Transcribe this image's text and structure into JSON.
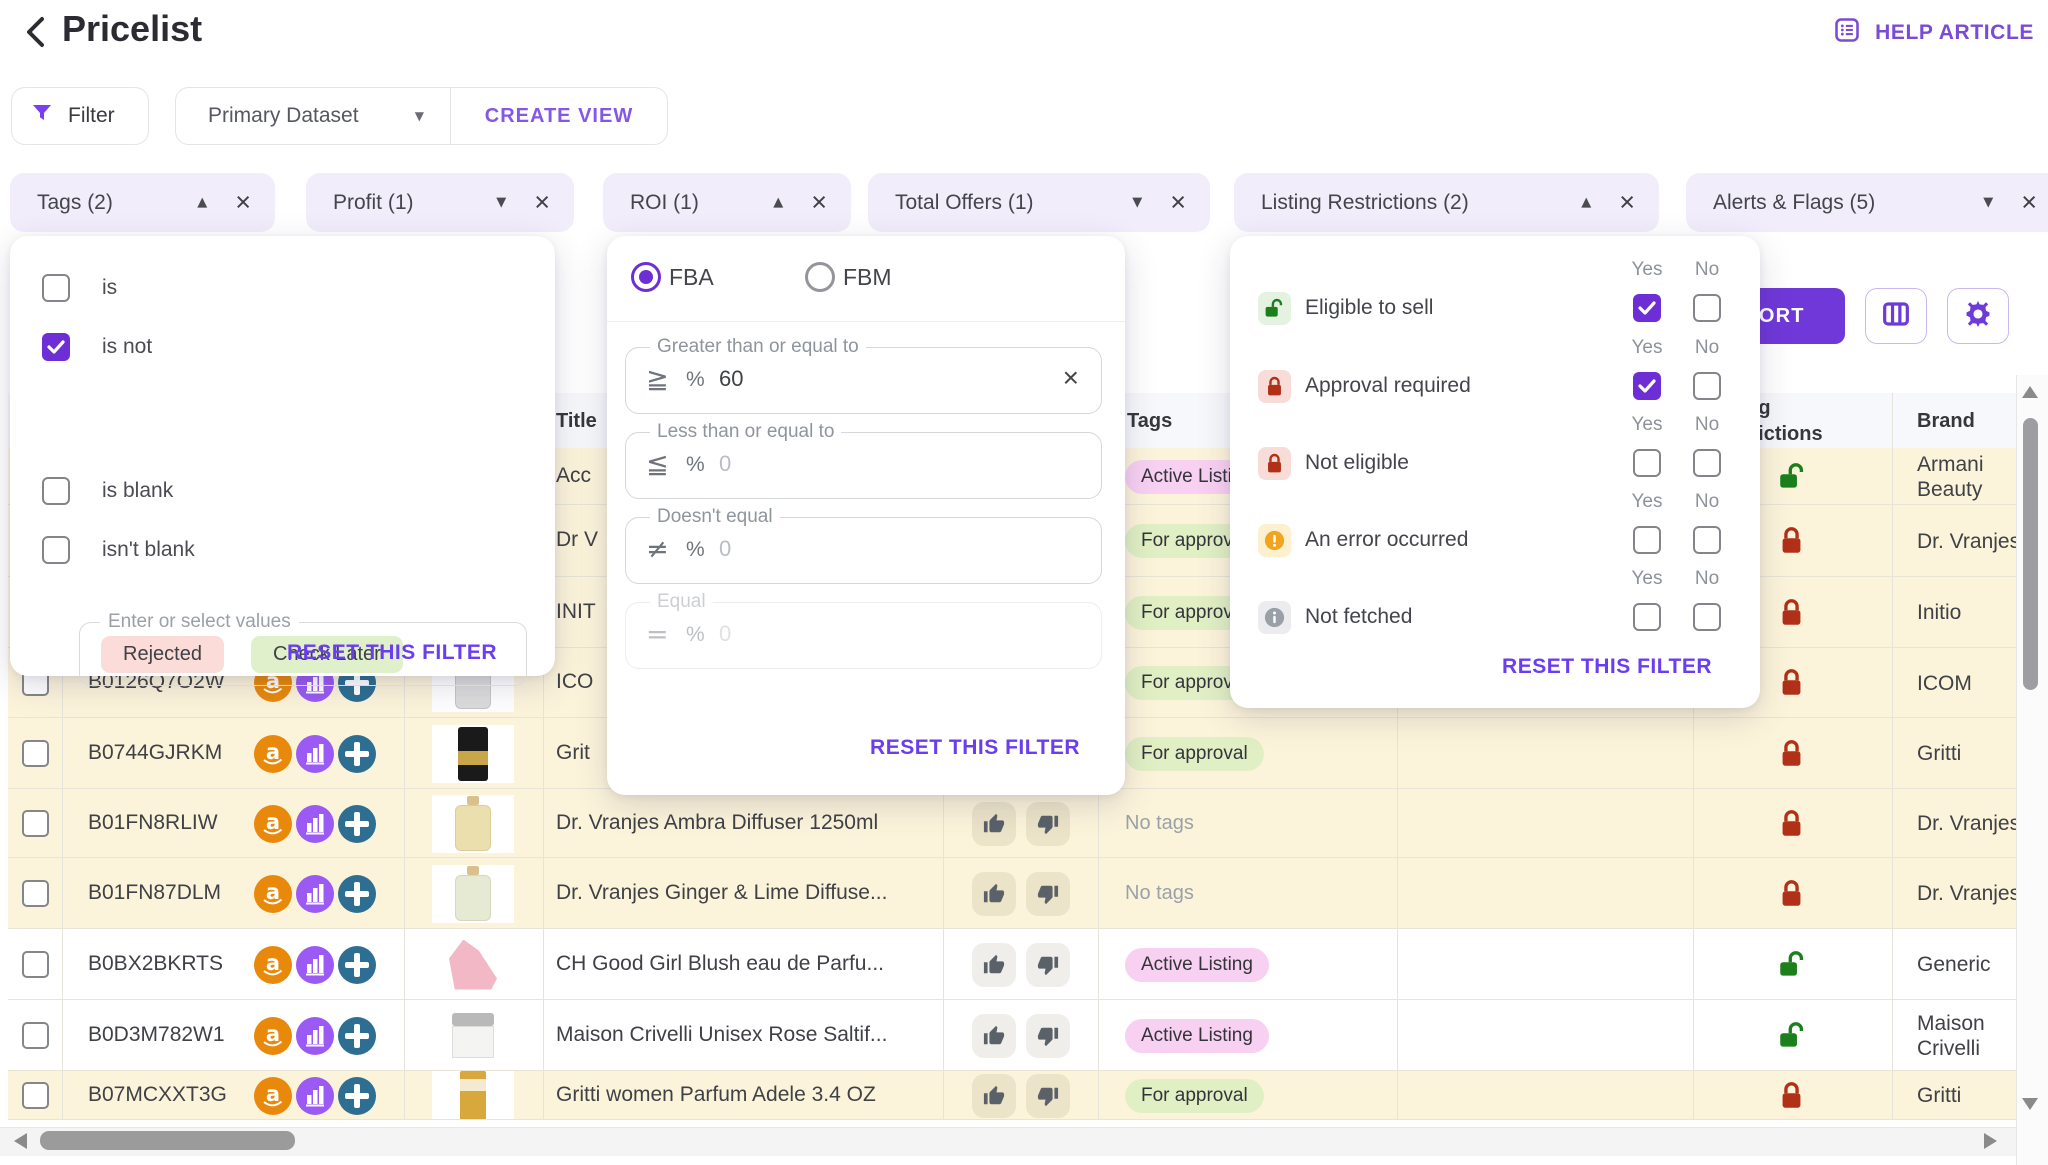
{
  "app": {
    "title": "Pricelist"
  },
  "topbar": {
    "help_label": "HELP ARTICLE"
  },
  "toolbar": {
    "filter_label": "Filter",
    "dataset_value": "Primary Dataset",
    "create_view_label": "CREATE VIEW"
  },
  "chips": [
    {
      "id": "tags",
      "label": "Tags (2)",
      "caret": "up"
    },
    {
      "id": "profit",
      "label": "Profit (1)",
      "caret": "down"
    },
    {
      "id": "roi",
      "label": "ROI (1)",
      "caret": "up"
    },
    {
      "id": "total-offers",
      "label": "Total Offers (1)",
      "caret": "down"
    },
    {
      "id": "listing-restrictions",
      "label": "Listing Restrictions (2)",
      "caret": "up"
    },
    {
      "id": "alerts-flags",
      "label": "Alerts & Flags (5)",
      "caret": "down"
    }
  ],
  "tags_popover": {
    "operators": [
      {
        "label": "is",
        "checked": false
      },
      {
        "label": "is not",
        "checked": true
      },
      {
        "label": "is blank",
        "checked": false
      },
      {
        "label": "isn't blank",
        "checked": false
      }
    ],
    "values_label": "Enter or select values",
    "values": [
      {
        "label": "Rejected",
        "color": "#fbdcd8"
      },
      {
        "label": "Check Later",
        "color": "#dff0ca"
      }
    ],
    "reset_label": "RESET THIS FILTER"
  },
  "roi_popover": {
    "options": [
      {
        "label": "FBA",
        "selected": true
      },
      {
        "label": "FBM",
        "selected": false
      }
    ],
    "fields": [
      {
        "legend": "Greater than or equal to",
        "symbol": "≧",
        "prefix": "%",
        "value": "60",
        "placeholder": "",
        "has_clear": true,
        "disabled": false
      },
      {
        "legend": "Less than or equal to",
        "symbol": "≦",
        "prefix": "%",
        "value": "",
        "placeholder": "0",
        "has_clear": false,
        "disabled": false
      },
      {
        "legend": "Doesn't equal",
        "symbol": "≠",
        "prefix": "%",
        "value": "",
        "placeholder": "0",
        "has_clear": false,
        "disabled": false
      },
      {
        "legend": "Equal",
        "symbol": "=",
        "prefix": "%",
        "value": "",
        "placeholder": "0",
        "has_clear": false,
        "disabled": true
      }
    ],
    "reset_label": "RESET THIS FILTER"
  },
  "listing_popover": {
    "yes_label": "Yes",
    "no_label": "No",
    "rows": [
      {
        "label": "Eligible to sell",
        "icon": "lock-open-green",
        "yes": true,
        "no": false
      },
      {
        "label": "Approval required",
        "icon": "lock-red",
        "yes": true,
        "no": false
      },
      {
        "label": "Not eligible",
        "icon": "lock-red",
        "yes": false,
        "no": false
      },
      {
        "label": "An error occurred",
        "icon": "warning-orange",
        "yes": false,
        "no": false
      },
      {
        "label": "Not fetched",
        "icon": "info-gray",
        "yes": false,
        "no": false
      }
    ],
    "reset_label": "RESET THIS FILTER"
  },
  "actions": {
    "export_label": "EXPORT"
  },
  "table": {
    "headers": {
      "title": "Title",
      "tags": "Tags",
      "listing_line1": "Listing",
      "listing_line2": "Restrictions",
      "brand": "Brand"
    },
    "rows": [
      {
        "asin": "",
        "title": "Acc",
        "tag": "Active Listing",
        "tag_type": "pink",
        "lock": "green",
        "brand": "Armani Beauty",
        "bg": "yellow",
        "thumb": "none"
      },
      {
        "asin": "",
        "title": "Dr V",
        "tag": "For approval",
        "tag_type": "green",
        "lock": "red",
        "brand": "Dr. Vranjes",
        "bg": "yellow",
        "thumb": "none"
      },
      {
        "asin": "",
        "title": "INIT",
        "tag": "For approval",
        "tag_type": "green",
        "lock": "red",
        "brand": "Initio",
        "bg": "yellow",
        "thumb": "none"
      },
      {
        "asin": "B0126Q7O2W",
        "title": "ICO",
        "tag": "For approval",
        "tag_type": "green",
        "lock": "red",
        "brand": "ICOM",
        "bg": "yellow",
        "thumb": "device"
      },
      {
        "asin": "B0744GJRKM",
        "title": "Grit",
        "tag": "For approval",
        "tag_type": "green",
        "lock": "red",
        "brand": "Gritti",
        "bg": "yellow",
        "thumb": "black-bottle"
      },
      {
        "asin": "B01FN8RLIW",
        "title": "Dr. Vranjes Ambra Diffuser 1250ml",
        "tag": "No tags",
        "tag_type": "none",
        "lock": "red",
        "brand": "Dr. Vranjes",
        "bg": "yellow",
        "thumb": "amber-bottle"
      },
      {
        "asin": "B01FN87DLM",
        "title": "Dr. Vranjes Ginger & Lime Diffuse...",
        "tag": "No tags",
        "tag_type": "none",
        "lock": "red",
        "brand": "Dr. Vranjes",
        "bg": "yellow",
        "thumb": "green-bottle"
      },
      {
        "asin": "B0BX2BKRTS",
        "title": "CH Good Girl Blush eau de Parfu...",
        "tag": "Active Listing",
        "tag_type": "pink",
        "lock": "green",
        "brand": "Generic",
        "bg": "white",
        "thumb": "heel"
      },
      {
        "asin": "B0D3M782W1",
        "title": "Maison Crivelli Unisex Rose Saltif...",
        "tag": "Active Listing",
        "tag_type": "pink",
        "lock": "green",
        "brand": "Maison Crivelli",
        "bg": "white",
        "thumb": "jar"
      },
      {
        "asin": "B07MCXXT3G",
        "title": "Gritti women Parfum Adele 3.4 OZ",
        "tag": "For approval",
        "tag_type": "green",
        "lock": "red",
        "brand": "Gritti",
        "bg": "yellow",
        "thumb": "gold-box"
      }
    ]
  },
  "colors": {
    "accent_purple": "#7038d9",
    "reset_link": "#6b3df0",
    "chip_bg": "#f1edfb",
    "row_highlight": "#fcf4da",
    "tag_pink": "#f8d0f2",
    "tag_green": "#e1f0c4",
    "lock_red": "#b03018",
    "lock_green": "#1b7f1b",
    "warning_orange": "#f2a41f",
    "info_gray": "#9aa0a8",
    "amazon_orange": "#e9890b",
    "chart_purple": "#9a5af3",
    "cross_blue": "#2d6e92"
  }
}
